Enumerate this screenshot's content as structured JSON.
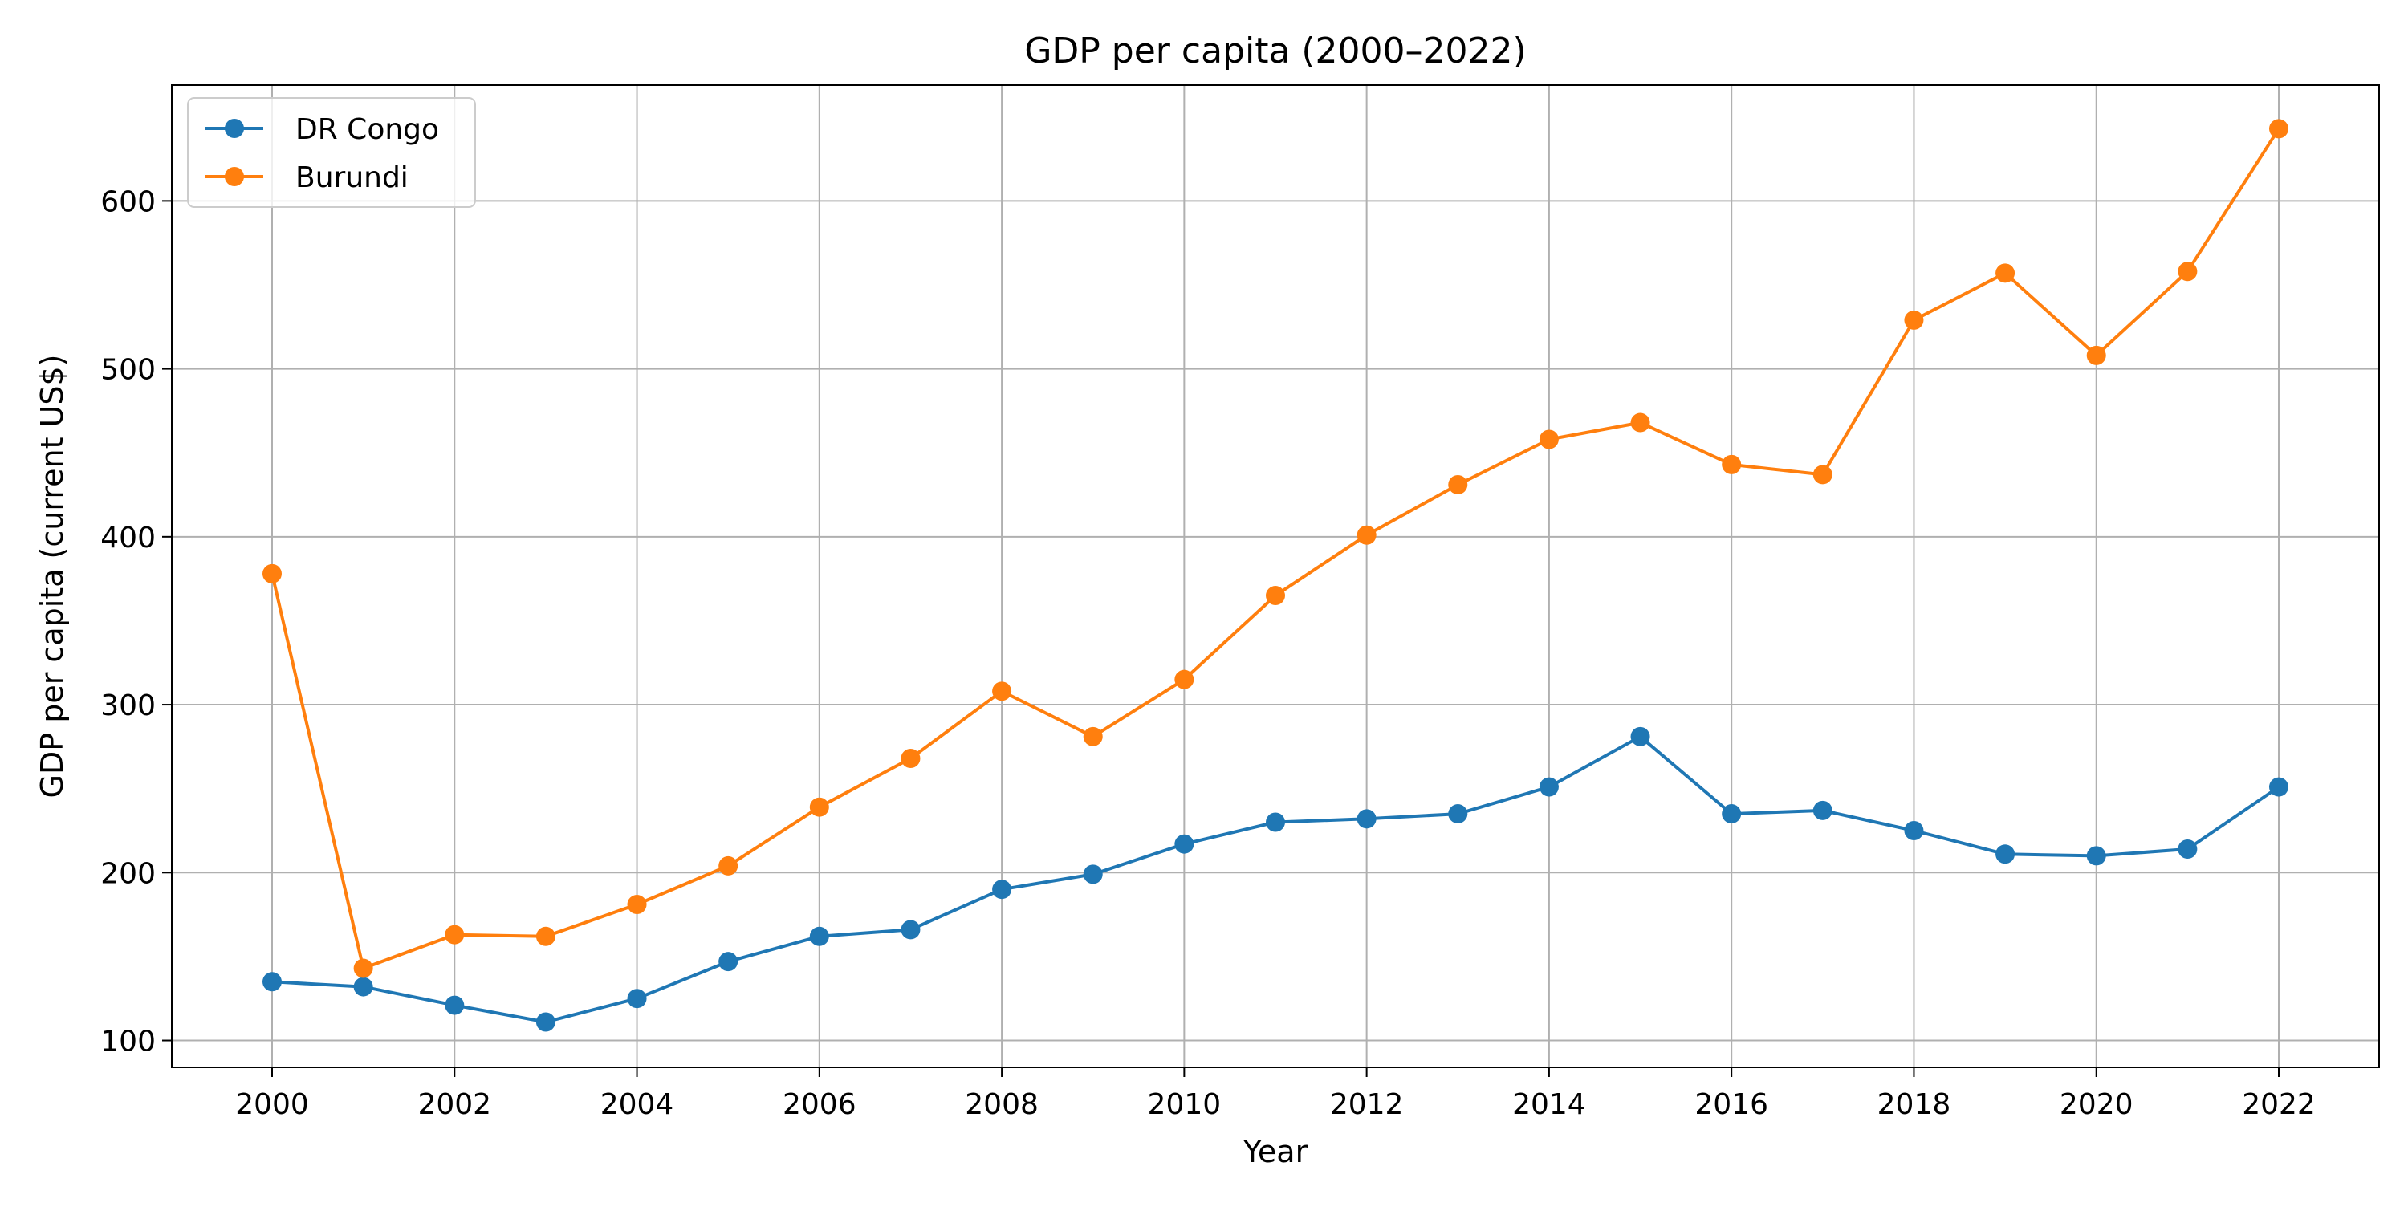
{
  "chart_data": {
    "type": "line",
    "title": "GDP per capita (2000–2022)",
    "xlabel": "Year",
    "ylabel": "GDP per capita (current US$)",
    "x": [
      2000,
      2001,
      2002,
      2003,
      2004,
      2005,
      2006,
      2007,
      2008,
      2009,
      2010,
      2011,
      2012,
      2013,
      2014,
      2015,
      2016,
      2017,
      2018,
      2019,
      2020,
      2021,
      2022
    ],
    "xticks": [
      2000,
      2002,
      2004,
      2006,
      2008,
      2010,
      2012,
      2014,
      2016,
      2018,
      2020,
      2022
    ],
    "yticks": [
      100,
      200,
      300,
      400,
      500,
      600
    ],
    "xlim": [
      1998.9,
      2023.1
    ],
    "ylim": [
      84,
      669
    ],
    "grid": true,
    "legend_position": "top-left",
    "series": [
      {
        "name": "DR Congo",
        "color": "#1f77b4",
        "marker": "circle",
        "values": [
          135,
          132,
          121,
          111,
          125,
          147,
          162,
          166,
          190,
          199,
          217,
          230,
          232,
          235,
          251,
          281,
          235,
          237,
          225,
          211,
          210,
          214,
          251
        ]
      },
      {
        "name": "Burundi",
        "color": "#ff7f0e",
        "marker": "circle",
        "values": [
          378,
          143,
          163,
          162,
          181,
          204,
          239,
          268,
          308,
          281,
          315,
          365,
          401,
          431,
          458,
          468,
          443,
          437,
          529,
          557,
          508,
          558,
          643
        ]
      }
    ]
  }
}
